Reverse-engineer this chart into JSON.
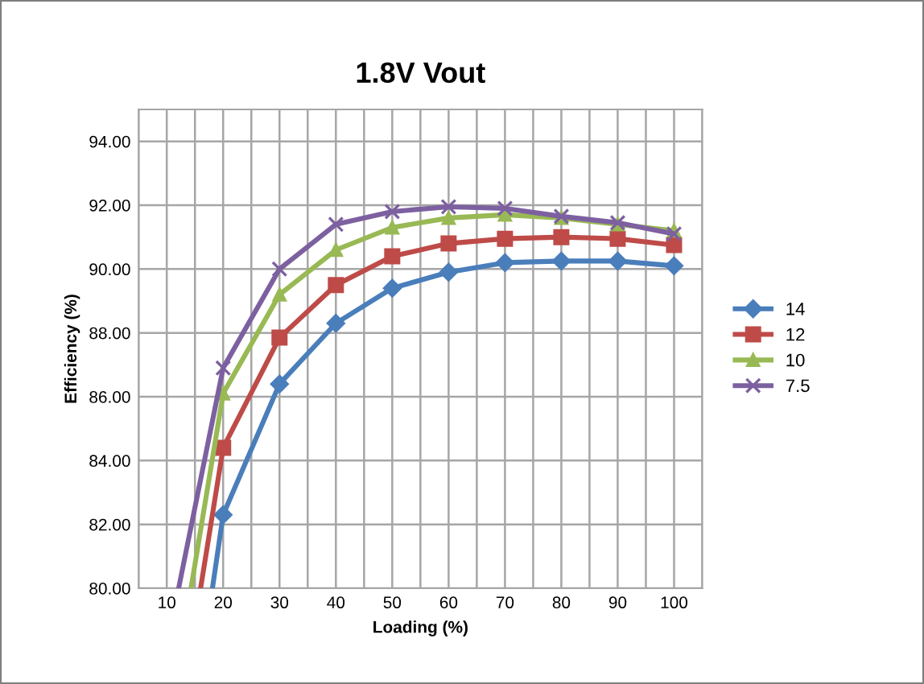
{
  "chart_data": {
    "type": "line",
    "title": "1.8V Vout",
    "xlabel": "Loading (%)",
    "ylabel": "Efficiency (%)",
    "series": [
      {
        "name": "14",
        "color": "#4a7ebb",
        "marker": "diamond",
        "x": [
          18.1,
          20,
          30,
          40,
          50,
          60,
          70,
          80,
          90,
          100
        ],
        "values": [
          80,
          82.3,
          86.4,
          88.3,
          89.4,
          89.9,
          90.2,
          90.25,
          90.25,
          90.1
        ]
      },
      {
        "name": "12",
        "color": "#be4b48",
        "marker": "square",
        "x": [
          16.0,
          20,
          30,
          40,
          50,
          60,
          70,
          80,
          90,
          100
        ],
        "values": [
          80,
          84.4,
          87.85,
          89.5,
          90.4,
          90.8,
          90.95,
          91.0,
          90.95,
          90.75
        ]
      },
      {
        "name": "10",
        "color": "#98b954",
        "marker": "triangle",
        "x": [
          14.3,
          20,
          30,
          40,
          50,
          60,
          70,
          80,
          90,
          100
        ],
        "values": [
          80,
          86.1,
          89.2,
          90.6,
          91.3,
          91.6,
          91.7,
          91.6,
          91.4,
          91.2
        ]
      },
      {
        "name": "7.5",
        "color": "#7d60a0",
        "marker": "cross",
        "x": [
          12.1,
          20,
          30,
          40,
          50,
          60,
          70,
          80,
          90,
          100
        ],
        "values": [
          80,
          86.9,
          90.0,
          91.4,
          91.8,
          91.95,
          91.9,
          91.65,
          91.45,
          91.1
        ]
      }
    ],
    "xlim": [
      5,
      105
    ],
    "xticks": [
      {
        "value": 5,
        "label": null
      },
      10,
      {
        "value": 15,
        "label": null
      },
      20,
      {
        "value": 25,
        "label": null
      },
      30,
      {
        "value": 35,
        "label": null
      },
      40,
      {
        "value": 45,
        "label": null
      },
      50,
      {
        "value": 55,
        "label": null
      },
      60,
      {
        "value": 65,
        "label": null
      },
      70,
      {
        "value": 75,
        "label": null
      },
      80,
      {
        "value": 85,
        "label": null
      },
      90,
      {
        "value": 95,
        "label": null
      },
      100,
      {
        "value": 105,
        "label": null
      }
    ],
    "ylim": [
      80,
      95
    ],
    "yticks": [
      {
        "value": 80,
        "label": "80.00"
      },
      {
        "value": 82,
        "label": "82.00"
      },
      {
        "value": 84,
        "label": "84.00"
      },
      {
        "value": 86,
        "label": "86.00"
      },
      {
        "value": 88,
        "label": "88.00"
      },
      {
        "value": 90,
        "label": "90.00"
      },
      {
        "value": 92,
        "label": "92.00"
      },
      {
        "value": 94,
        "label": "94.00"
      }
    ],
    "grid": true,
    "legend": "right",
    "line_style": "solid"
  }
}
